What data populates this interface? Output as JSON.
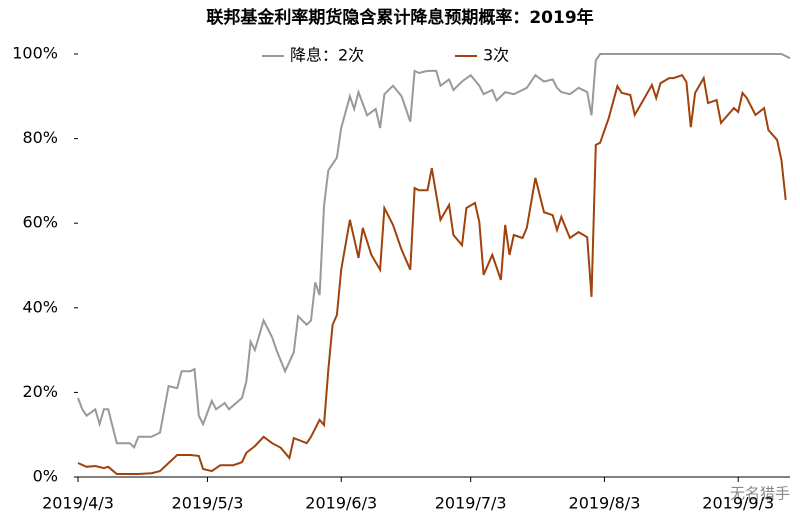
{
  "chart_data": {
    "type": "line",
    "title": "联邦基金利率期货隐含累计降息预期概率：2019年",
    "watermark": "无名猎手",
    "xlim": [
      "2019/4/3",
      "2019/9/15"
    ],
    "xticks": [
      "2019/4/3",
      "2019/5/3",
      "2019/6/3",
      "2019/7/3",
      "2019/8/3",
      "2019/9/3"
    ],
    "ylim": [
      0,
      100
    ],
    "yticks": [
      {
        "value": 0,
        "label": "0%"
      },
      {
        "value": 20,
        "label": "20%"
      },
      {
        "value": 40,
        "label": "40%"
      },
      {
        "value": 60,
        "label": "60%"
      },
      {
        "value": 80,
        "label": "80%"
      },
      {
        "value": 100,
        "label": "100%"
      }
    ],
    "grid": false,
    "series": [
      {
        "name": "降息：2次",
        "color": "#999999",
        "x": [
          "2019/4/3",
          "2019/4/4",
          "2019/4/5",
          "2019/4/7",
          "2019/4/8",
          "2019/4/9",
          "2019/4/10",
          "2019/4/12",
          "2019/4/15",
          "2019/4/16",
          "2019/4/17",
          "2019/4/20",
          "2019/4/22",
          "2019/4/23",
          "2019/4/24",
          "2019/4/26",
          "2019/4/27",
          "2019/4/29",
          "2019/4/30",
          "2019/5/1",
          "2019/5/2",
          "2019/5/4",
          "2019/5/5",
          "2019/5/7",
          "2019/5/8",
          "2019/5/11",
          "2019/5/12",
          "2019/5/13",
          "2019/5/14",
          "2019/5/16",
          "2019/5/18",
          "2019/5/19",
          "2019/5/21",
          "2019/5/23",
          "2019/5/24",
          "2019/5/26",
          "2019/5/27",
          "2019/5/28",
          "2019/5/29",
          "2019/5/30",
          "2019/5/31",
          "2019/6/2",
          "2019/6/3",
          "2019/6/5",
          "2019/6/6",
          "2019/6/7",
          "2019/6/9",
          "2019/6/11",
          "2019/6/12",
          "2019/6/13",
          "2019/6/15",
          "2019/6/17",
          "2019/6/19",
          "2019/6/20",
          "2019/6/21",
          "2019/6/23",
          "2019/6/25",
          "2019/6/26",
          "2019/6/28",
          "2019/6/29",
          "2019/7/1",
          "2019/7/3",
          "2019/7/5",
          "2019/7/6",
          "2019/7/8",
          "2019/7/9",
          "2019/7/11",
          "2019/7/13",
          "2019/7/15",
          "2019/7/16",
          "2019/7/18",
          "2019/7/20",
          "2019/7/22",
          "2019/7/23",
          "2019/7/24",
          "2019/7/26",
          "2019/7/28",
          "2019/7/30",
          "2019/7/31",
          "2019/8/1",
          "2019/8/2",
          "2019/9/13",
          "2019/9/15"
        ],
        "values": [
          18.7,
          16,
          14.5,
          16,
          12.5,
          16,
          16,
          8,
          8,
          7,
          9.5,
          9.5,
          10.5,
          16,
          21.5,
          21,
          25,
          25,
          25.5,
          14.5,
          12.5,
          18,
          16,
          17.5,
          16,
          18.7,
          22.5,
          32,
          30,
          37,
          33,
          30,
          25,
          29.5,
          38,
          36,
          37,
          46,
          43,
          64,
          72.5,
          75.5,
          82.5,
          90,
          87,
          91,
          85.5,
          87,
          82.5,
          90.5,
          92.5,
          90,
          84,
          96,
          95.5,
          96,
          96,
          92.5,
          94,
          91.5,
          93.5,
          95,
          92.5,
          90.5,
          91.5,
          89,
          91,
          90.5,
          91.5,
          92,
          95,
          93.5,
          94,
          92,
          91,
          90.5,
          92,
          91,
          85.5,
          98.5,
          100,
          100,
          99
        ]
      },
      {
        "name": "3次",
        "color": "#a0420c",
        "x": [
          "2019/4/3",
          "2019/4/5",
          "2019/4/7",
          "2019/4/9",
          "2019/4/10",
          "2019/4/12",
          "2019/4/15",
          "2019/4/17",
          "2019/4/20",
          "2019/4/22",
          "2019/4/24",
          "2019/4/26",
          "2019/4/29",
          "2019/5/1",
          "2019/5/2",
          "2019/5/4",
          "2019/5/6",
          "2019/5/9",
          "2019/5/11",
          "2019/5/12",
          "2019/5/14",
          "2019/5/16",
          "2019/5/18",
          "2019/5/20",
          "2019/5/22",
          "2019/5/23",
          "2019/5/26",
          "2019/5/27",
          "2019/5/29",
          "2019/5/30",
          "2019/5/31",
          "2019/6/1",
          "2019/6/2",
          "2019/6/3",
          "2019/6/5",
          "2019/6/7",
          "2019/6/8",
          "2019/6/10",
          "2019/6/12",
          "2019/6/13",
          "2019/6/15",
          "2019/6/17",
          "2019/6/19",
          "2019/6/20",
          "2019/6/21",
          "2019/6/23",
          "2019/6/24",
          "2019/6/26",
          "2019/6/28",
          "2019/6/29",
          "2019/7/1",
          "2019/7/2",
          "2019/7/4",
          "2019/7/5",
          "2019/7/6",
          "2019/7/8",
          "2019/7/10",
          "2019/7/11",
          "2019/7/12",
          "2019/7/13",
          "2019/7/15",
          "2019/7/16",
          "2019/7/18",
          "2019/7/20",
          "2019/7/22",
          "2019/7/23",
          "2019/7/24",
          "2019/7/26",
          "2019/7/28",
          "2019/7/30",
          "2019/7/31",
          "2019/8/1",
          "2019/8/2",
          "2019/8/4",
          "2019/8/6",
          "2019/8/7",
          "2019/8/9",
          "2019/8/10",
          "2019/8/12",
          "2019/8/14",
          "2019/8/15",
          "2019/8/16",
          "2019/8/18",
          "2019/8/19",
          "2019/8/21",
          "2019/8/22",
          "2019/8/23",
          "2019/8/24",
          "2019/8/26",
          "2019/8/27",
          "2019/8/29",
          "2019/8/30",
          "2019/8/31",
          "2019/9/2",
          "2019/9/3",
          "2019/9/4",
          "2019/9/5",
          "2019/9/7",
          "2019/9/9",
          "2019/9/10",
          "2019/9/12",
          "2019/9/13",
          "2019/9/14"
        ],
        "values": [
          3.3,
          2.4,
          2.6,
          2.1,
          2.4,
          0.7,
          0.7,
          0.7,
          0.9,
          1.4,
          3.3,
          5.2,
          5.2,
          5,
          1.9,
          1.4,
          2.8,
          2.8,
          3.5,
          5.7,
          7.3,
          9.5,
          8,
          6.9,
          4.5,
          9.2,
          8,
          9.5,
          13.5,
          12.3,
          25.3,
          36,
          38.3,
          49,
          60.8,
          51.8,
          58.9,
          52.5,
          49,
          63.6,
          59.6,
          53.7,
          49,
          68.3,
          67.8,
          67.8,
          73,
          60.8,
          64.3,
          57.2,
          54.8,
          63.6,
          64.8,
          60.3,
          47.8,
          52.5,
          46.6,
          59.6,
          52.5,
          57.2,
          56.5,
          58.9,
          70.7,
          62.6,
          61.9,
          58.4,
          61.5,
          56.5,
          57.9,
          56.7,
          42.6,
          78.5,
          79,
          84.9,
          92.4,
          90.8,
          90.3,
          85.6,
          89.1,
          92.7,
          89.6,
          93.1,
          94.3,
          94.3,
          95,
          93.4,
          82.7,
          90.8,
          94.3,
          88.4,
          89.1,
          83.7,
          84.9,
          87.2,
          86.3,
          90.8,
          89.6,
          85.6,
          87.2,
          82,
          79.7,
          75,
          65.5
        ]
      }
    ]
  }
}
